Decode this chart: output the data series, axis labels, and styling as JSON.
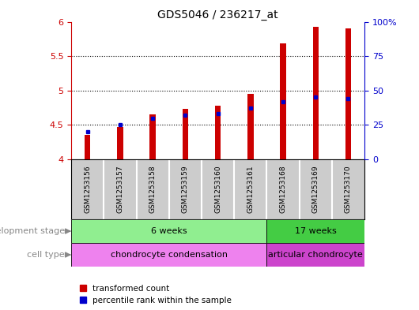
{
  "title": "GDS5046 / 236217_at",
  "samples": [
    "GSM1253156",
    "GSM1253157",
    "GSM1253158",
    "GSM1253159",
    "GSM1253160",
    "GSM1253161",
    "GSM1253168",
    "GSM1253169",
    "GSM1253170"
  ],
  "transformed_count": [
    4.35,
    4.47,
    4.65,
    4.73,
    4.78,
    4.95,
    5.68,
    5.92,
    5.9
  ],
  "percentile_rank": [
    20,
    25,
    30,
    32,
    33,
    37,
    42,
    45,
    44
  ],
  "ylim_left": [
    4.0,
    6.0
  ],
  "ylim_right": [
    0,
    100
  ],
  "yticks_left": [
    4.0,
    4.5,
    5.0,
    5.5,
    6.0
  ],
  "yticks_right": [
    0,
    25,
    50,
    75,
    100
  ],
  "ytick_labels_right": [
    "0",
    "25",
    "50",
    "75",
    "100%"
  ],
  "bar_color": "#cc0000",
  "percentile_color": "#0000cc",
  "development_stages": [
    {
      "label": "6 weeks",
      "start": 0,
      "end": 5,
      "color": "#90ee90"
    },
    {
      "label": "17 weeks",
      "start": 6,
      "end": 8,
      "color": "#44cc44"
    }
  ],
  "cell_types": [
    {
      "label": "chondrocyte condensation",
      "start": 0,
      "end": 5,
      "color": "#ee82ee"
    },
    {
      "label": "articular chondrocyte",
      "start": 6,
      "end": 8,
      "color": "#cc44cc"
    }
  ],
  "dev_stage_label": "development stage",
  "cell_type_label": "cell type",
  "legend_transformed": "transformed count",
  "legend_percentile": "percentile rank within the sample",
  "bar_width": 0.18,
  "base_value": 4.0,
  "sample_panel_bg": "#cccccc",
  "left_label_color": "#888888"
}
